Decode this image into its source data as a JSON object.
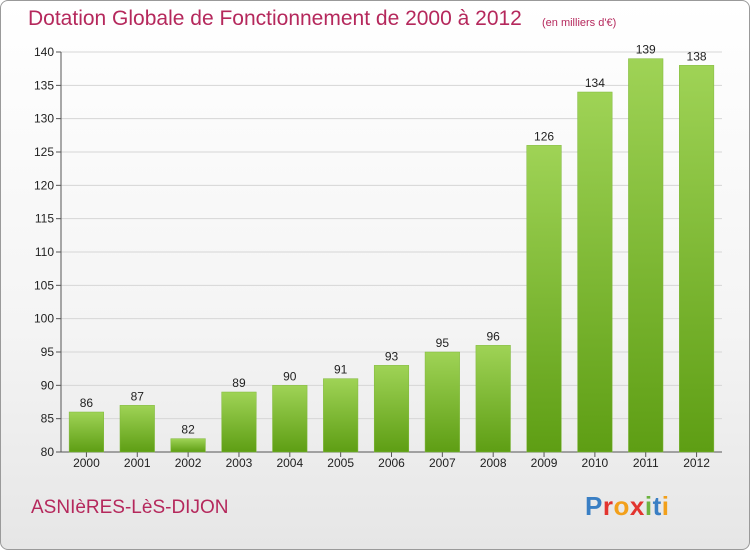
{
  "header": {
    "title": "Dotation Globale de Fonctionnement de 2000 à 2012",
    "units": "(en milliers d'€)"
  },
  "footer": {
    "commune": "ASNIèRES-LèS-DIJON",
    "logo_text": "Proxiti"
  },
  "colors": {
    "title": "#b5285c",
    "bar_top": "#9fd356",
    "bar_bottom": "#5e9e14",
    "grid": "#d6d6d6"
  },
  "chart_data": {
    "type": "bar",
    "title": "Dotation Globale de Fonctionnement de 2000 à 2012",
    "subtitle": "(en milliers d'€)",
    "xlabel": "",
    "ylabel": "",
    "categories": [
      "2000",
      "2001",
      "2002",
      "2003",
      "2004",
      "2005",
      "2006",
      "2007",
      "2008",
      "2009",
      "2010",
      "2011",
      "2012"
    ],
    "values": [
      86,
      87,
      82,
      89,
      90,
      91,
      93,
      95,
      96,
      126,
      134,
      139,
      138
    ],
    "ylim": [
      80,
      140
    ],
    "yticks": [
      80,
      85,
      90,
      95,
      100,
      105,
      110,
      115,
      120,
      125,
      130,
      135,
      140
    ],
    "grid": true,
    "legend": "none"
  }
}
